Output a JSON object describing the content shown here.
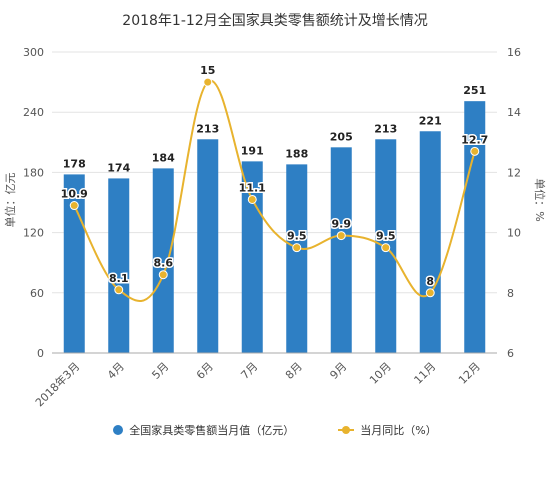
{
  "chart_data": {
    "type": "bar+line",
    "title": "2018年1-12月全国家具类零售额统计及增长情况",
    "categories": [
      "2018年3月",
      "4月",
      "5月",
      "6月",
      "7月",
      "8月",
      "9月",
      "10月",
      "11月",
      "12月"
    ],
    "left_axis": {
      "label": "单位：亿元",
      "ticks": [
        0,
        60,
        120,
        180,
        240,
        300
      ],
      "ylim": [
        0,
        300
      ]
    },
    "right_axis": {
      "label": "单位：%",
      "ticks": [
        6,
        8,
        10,
        12,
        14,
        16
      ],
      "ylim": [
        6,
        16
      ]
    },
    "series": [
      {
        "name": "全国家具类零售额当月值（亿元）",
        "type": "bar",
        "axis": "left",
        "color": "#2e7fc4",
        "values": [
          178,
          174,
          184,
          213,
          191,
          188,
          205,
          213,
          221,
          251
        ],
        "labels": [
          "178",
          "174",
          "184",
          "213",
          "191",
          "188",
          "205",
          "213",
          "221",
          "251"
        ]
      },
      {
        "name": "当月同比（%）",
        "type": "line",
        "axis": "right",
        "color": "#e8b32e",
        "values": [
          10.9,
          8.1,
          8.6,
          15,
          11.1,
          9.5,
          9.9,
          9.5,
          8,
          12.7
        ],
        "labels": [
          "10.9",
          "8.1",
          "8.6",
          "15",
          "11.1",
          "9.5",
          "9.9",
          "9.5",
          "8",
          "12.7"
        ]
      }
    ],
    "grid": true,
    "legend_position": "bottom"
  }
}
